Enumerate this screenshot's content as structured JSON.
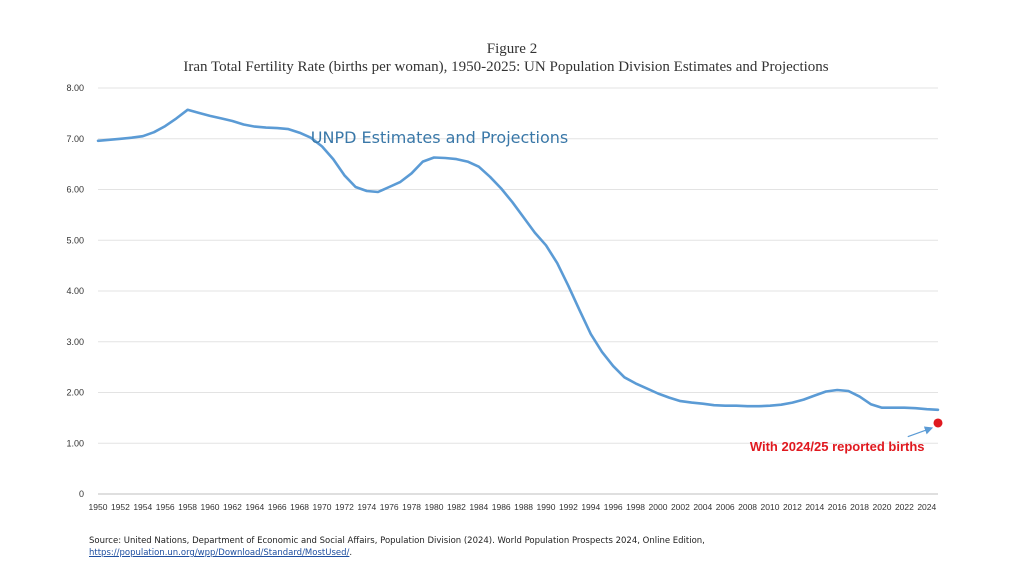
{
  "chart_data": {
    "type": "line",
    "title_line1": "Figure 2",
    "title_line2": "Iran Total Fertility Rate (births per woman), 1950-2025: UN Population Division Estimates and Projections",
    "xlabel": "",
    "ylabel": "",
    "xlim": [
      1950,
      2025
    ],
    "ylim": [
      0,
      8
    ],
    "y_ticks": [
      "0",
      "1.00",
      "2.00",
      "3.00",
      "4.00",
      "5.00",
      "6.00",
      "7.00",
      "8.00"
    ],
    "y_tick_values": [
      0,
      1,
      2,
      3,
      4,
      5,
      6,
      7,
      8
    ],
    "x_ticks": [
      "1950",
      "1952",
      "1954",
      "1956",
      "1958",
      "1960",
      "1962",
      "1964",
      "1966",
      "1968",
      "1970",
      "1972",
      "1974",
      "1976",
      "1978",
      "1980",
      "1982",
      "1984",
      "1986",
      "1988",
      "1990",
      "1992",
      "1994",
      "1996",
      "1998",
      "2000",
      "2002",
      "2004",
      "2006",
      "2008",
      "2010",
      "2012",
      "2014",
      "2016",
      "2018",
      "2020",
      "2022",
      "2024"
    ],
    "x_tick_values": [
      1950,
      1952,
      1954,
      1956,
      1958,
      1960,
      1962,
      1964,
      1966,
      1968,
      1970,
      1972,
      1974,
      1976,
      1978,
      1980,
      1982,
      1984,
      1986,
      1988,
      1990,
      1992,
      1994,
      1996,
      1998,
      2000,
      2002,
      2004,
      2006,
      2008,
      2010,
      2012,
      2014,
      2016,
      2018,
      2020,
      2022,
      2024
    ],
    "grid": true,
    "series": [
      {
        "name": "UNPD Estimates and Projections",
        "color": "#5b9bd5",
        "x": [
          1950,
          1951,
          1952,
          1953,
          1954,
          1955,
          1956,
          1957,
          1958,
          1959,
          1960,
          1961,
          1962,
          1963,
          1964,
          1965,
          1966,
          1967,
          1968,
          1969,
          1970,
          1971,
          1972,
          1973,
          1974,
          1975,
          1976,
          1977,
          1978,
          1979,
          1980,
          1981,
          1982,
          1983,
          1984,
          1985,
          1986,
          1987,
          1988,
          1989,
          1990,
          1991,
          1992,
          1993,
          1994,
          1995,
          1996,
          1997,
          1998,
          1999,
          2000,
          2001,
          2002,
          2003,
          2004,
          2005,
          2006,
          2007,
          2008,
          2009,
          2010,
          2011,
          2012,
          2013,
          2014,
          2015,
          2016,
          2017,
          2018,
          2019,
          2020,
          2021,
          2022,
          2023,
          2024,
          2025
        ],
        "values": [
          6.96,
          6.98,
          7.0,
          7.02,
          7.05,
          7.13,
          7.25,
          7.4,
          7.57,
          7.51,
          7.45,
          7.4,
          7.35,
          7.28,
          7.24,
          7.22,
          7.21,
          7.19,
          7.12,
          7.02,
          6.85,
          6.6,
          6.28,
          6.05,
          5.97,
          5.95,
          6.05,
          6.15,
          6.32,
          6.55,
          6.63,
          6.62,
          6.6,
          6.55,
          6.45,
          6.25,
          6.02,
          5.75,
          5.45,
          5.15,
          4.9,
          4.55,
          4.1,
          3.62,
          3.15,
          2.8,
          2.52,
          2.3,
          2.18,
          2.08,
          1.98,
          1.9,
          1.83,
          1.8,
          1.78,
          1.75,
          1.74,
          1.74,
          1.73,
          1.73,
          1.74,
          1.76,
          1.8,
          1.86,
          1.94,
          2.02,
          2.05,
          2.03,
          1.92,
          1.77,
          1.7,
          1.7,
          1.7,
          1.69,
          1.67,
          1.66
        ]
      }
    ],
    "annotations": [
      {
        "text": "UNPD Estimates and Projections",
        "x": 1969,
        "y": 6.92,
        "color": "#3a78a8"
      },
      {
        "text": "With 2024/25 reported births",
        "x": 2016,
        "y": 0.85,
        "color": "#e0191f",
        "point_x": 2025,
        "point_y": 1.4,
        "arrow_from": [
          2022.3,
          1.13
        ]
      }
    ]
  },
  "source": {
    "text": "Source: United Nations, Department of Economic and Social Affairs, Population Division (2024). World Population Prospects 2024, Online Edition,",
    "link": "https://population.un.org/wpp/Download/Standard/MostUsed/",
    "link_suffix": "."
  }
}
